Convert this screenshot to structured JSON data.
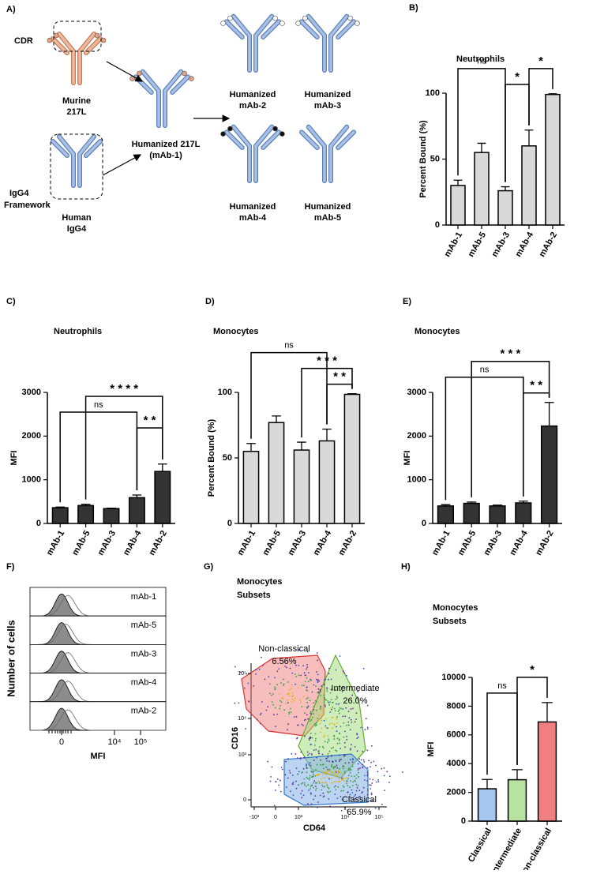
{
  "diagram": {
    "panel": "A)",
    "cdr": "CDR",
    "framework": [
      "IgG4",
      "Framework"
    ],
    "nodes": [
      {
        "label": [
          "Murine",
          "217L"
        ]
      },
      {
        "label": [
          "Human",
          "IgG4"
        ]
      },
      {
        "label": [
          "Humanized 217L",
          "(mAb-1)"
        ]
      },
      {
        "label": [
          "Humanized",
          "mAb-2"
        ]
      },
      {
        "label": [
          "Humanized",
          "mAb-3"
        ]
      },
      {
        "label": [
          "Humanized",
          "mAb-4"
        ]
      },
      {
        "label": [
          "Humanized",
          "mAb-5"
        ]
      }
    ]
  },
  "chart_data": [
    {
      "panel": "B)",
      "type": "bar",
      "title": "Neutrophils",
      "ylabel": "Percent Bound (%)",
      "categories": [
        "mAb-1",
        "mAb-5",
        "mAb-3",
        "mAb-4",
        "mAb-2"
      ],
      "values": [
        30,
        55,
        26,
        60,
        99
      ],
      "errors": [
        4,
        7,
        3,
        12,
        0.5
      ],
      "color": "#d9d9d9",
      "ylim": [
        0,
        100
      ],
      "yticks": [
        0,
        50,
        100
      ],
      "brackets": [
        {
          "from": "mAb-1",
          "to": "mAb-3",
          "label": "ns"
        },
        {
          "from": "mAb-3",
          "to": "mAb-4",
          "label": "*"
        },
        {
          "from": "mAb-4",
          "to": "mAb-2",
          "label": "*"
        }
      ]
    },
    {
      "panel": "C)",
      "type": "bar",
      "title": "Neutrophils",
      "ylabel": "MFI",
      "categories": [
        "mAb-1",
        "mAb-5",
        "mAb-3",
        "mAb-4",
        "mAb-2"
      ],
      "values": [
        360,
        410,
        340,
        590,
        1190
      ],
      "errors": [
        15,
        30,
        10,
        60,
        170
      ],
      "color": "#333333",
      "ylim": [
        0,
        3000
      ],
      "yticks": [
        0,
        1000,
        2000,
        3000
      ],
      "brackets": [
        {
          "from": "mAb-1",
          "to": "mAb-4",
          "label": "ns"
        },
        {
          "from": "mAb-4",
          "to": "mAb-2",
          "label": "* *"
        },
        {
          "from": "mAb-5",
          "to": "mAb-2",
          "label": "* * * *"
        }
      ]
    },
    {
      "panel": "D)",
      "type": "bar",
      "title": "Monocytes",
      "ylabel": "Percent Bound (%)",
      "categories": [
        "mAb-1",
        "mAb-5",
        "mAb-3",
        "mAb-4",
        "mAb-2"
      ],
      "values": [
        55,
        77,
        56,
        63,
        98.5
      ],
      "errors": [
        6,
        5,
        6,
        9,
        0.5
      ],
      "color": "#d9d9d9",
      "ylim": [
        0,
        100
      ],
      "yticks": [
        0,
        50,
        100
      ],
      "brackets": [
        {
          "from": "mAb-1",
          "to": "mAb-4",
          "label": "ns"
        },
        {
          "from": "mAb-4",
          "to": "mAb-2",
          "label": "* *"
        },
        {
          "from": "mAb-3",
          "to": "mAb-2",
          "label": "* * *"
        }
      ]
    },
    {
      "panel": "E)",
      "type": "bar",
      "title": "Monocytes",
      "ylabel": "MFI",
      "categories": [
        "mAb-1",
        "mAb-5",
        "mAb-3",
        "mAb-4",
        "mAb-2"
      ],
      "values": [
        400,
        460,
        400,
        470,
        2230
      ],
      "errors": [
        30,
        30,
        20,
        40,
        540
      ],
      "color": "#333333",
      "ylim": [
        0,
        3000
      ],
      "yticks": [
        0,
        1000,
        2000,
        3000
      ],
      "brackets": [
        {
          "from": "mAb-1",
          "to": "mAb-4",
          "label": "ns"
        },
        {
          "from": "mAb-4",
          "to": "mAb-2",
          "label": "* *"
        },
        {
          "from": "mAb-5",
          "to": "mAb-2",
          "label": "* * *"
        }
      ]
    },
    {
      "panel": "H)",
      "type": "bar",
      "title": [
        "Monocytes",
        "Subsets"
      ],
      "ylabel": "MFI",
      "categories": [
        "Classical",
        "Intermediate",
        "Non-classical"
      ],
      "values": [
        2250,
        2880,
        6900
      ],
      "errors": [
        650,
        700,
        1350
      ],
      "colors": [
        "#a4c8f0",
        "#b6e3a0",
        "#f08080"
      ],
      "ylim": [
        0,
        10000
      ],
      "yticks": [
        0,
        2000,
        4000,
        6000,
        8000,
        10000
      ],
      "brackets": [
        {
          "from": "Classical",
          "to": "Intermediate",
          "label": "ns"
        },
        {
          "from": "Intermediate",
          "to": "Non-classical",
          "label": "*"
        }
      ]
    }
  ],
  "histogram_panel": {
    "panel": "F)",
    "ylabel": "Number of cells",
    "xlabel": "MFI",
    "rows": [
      "mAb-1",
      "mAb-5",
      "mAb-3",
      "mAb-4",
      "mAb-2"
    ],
    "xticks": [
      "0",
      "10⁴",
      "10⁵"
    ]
  },
  "flow_panel": {
    "panel": "G)",
    "title": [
      "Monocytes",
      "Subsets"
    ],
    "xlabel": "CD64",
    "ylabel": "CD16",
    "xticks": [
      "-10³",
      "0",
      "10³",
      "10⁴",
      "10⁵"
    ],
    "yticks": [
      "10⁵",
      "10⁴",
      "10³",
      "0"
    ],
    "gates": [
      {
        "name": "Non-classical",
        "percent": "6.56%"
      },
      {
        "name": "Intermediate",
        "percent": "26.0%"
      },
      {
        "name": "Classical",
        "percent": "65.9%"
      }
    ]
  }
}
